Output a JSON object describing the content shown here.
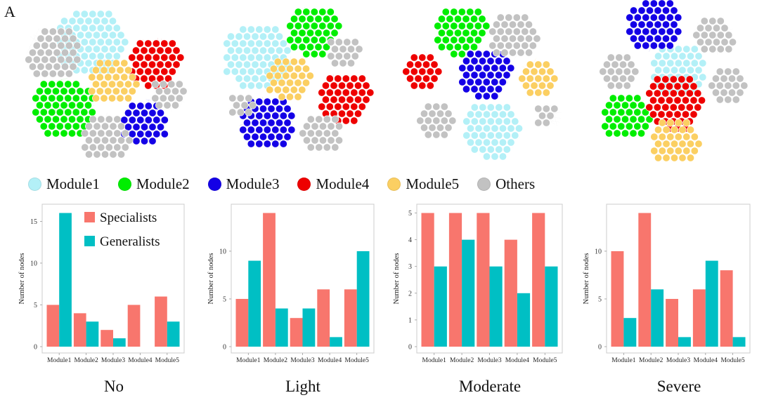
{
  "panel_letter": "A",
  "module_legend": [
    {
      "label": "Module1",
      "color": "#b3f0f7"
    },
    {
      "label": "Module2",
      "color": "#00ee00"
    },
    {
      "label": "Module3",
      "color": "#1400e6"
    },
    {
      "label": "Module4",
      "color": "#ee0000"
    },
    {
      "label": "Module5",
      "color": "#fbcf62"
    },
    {
      "label": "Others",
      "color": "#c2c2c2"
    }
  ],
  "conditions": [
    "No",
    "Light",
    "Moderate",
    "Severe"
  ],
  "colors": {
    "specialists": "#f8766d",
    "generalists": "#00bfc4",
    "edge": "#dddddd",
    "frame": "#cccccc"
  },
  "chart_data": [
    {
      "type": "bar",
      "title": "No",
      "xlabel": "",
      "ylabel": "Number of nodes",
      "categories": [
        "Module1",
        "Module2",
        "Module3",
        "Module4",
        "Module5"
      ],
      "series": [
        {
          "name": "Specialists",
          "values": [
            5,
            4,
            2,
            5,
            6
          ]
        },
        {
          "name": "Generalists",
          "values": [
            16,
            3,
            1,
            0,
            3
          ]
        }
      ],
      "ylim": [
        0,
        16.8
      ],
      "yticks": [
        0,
        5,
        10,
        15
      ],
      "legend": {
        "position": "top-right",
        "entries": [
          "Specialists",
          "Generalists"
        ]
      },
      "grid": false
    },
    {
      "type": "bar",
      "title": "Light",
      "xlabel": "",
      "ylabel": "Number of nodes",
      "categories": [
        "Module1",
        "Module2",
        "Module3",
        "Module4",
        "Module5"
      ],
      "series": [
        {
          "name": "Specialists",
          "values": [
            5,
            14,
            3,
            6,
            6
          ]
        },
        {
          "name": "Generalists",
          "values": [
            9,
            4,
            4,
            1,
            10
          ]
        }
      ],
      "ylim": [
        0,
        14.7
      ],
      "yticks": [
        0,
        5,
        10
      ],
      "grid": false
    },
    {
      "type": "bar",
      "title": "Moderate",
      "xlabel": "",
      "ylabel": "Number of nodes",
      "categories": [
        "Module1",
        "Module2",
        "Module3",
        "Module4",
        "Module5"
      ],
      "series": [
        {
          "name": "Specialists",
          "values": [
            5,
            5,
            5,
            4,
            5
          ]
        },
        {
          "name": "Generalists",
          "values": [
            3,
            4,
            3,
            2,
            3
          ]
        }
      ],
      "ylim": [
        0,
        5.25
      ],
      "yticks": [
        0,
        1,
        2,
        3,
        4,
        5
      ],
      "grid": false
    },
    {
      "type": "bar",
      "title": "Severe",
      "xlabel": "",
      "ylabel": "Number of nodes",
      "categories": [
        "Module1",
        "Module2",
        "Module3",
        "Module4",
        "Module5"
      ],
      "series": [
        {
          "name": "Specialists",
          "values": [
            10,
            14,
            5,
            6,
            8
          ]
        },
        {
          "name": "Generalists",
          "values": [
            3,
            6,
            1,
            9,
            1
          ]
        }
      ],
      "ylim": [
        0,
        14.7
      ],
      "yticks": [
        0,
        5,
        10
      ],
      "grid": false
    }
  ]
}
